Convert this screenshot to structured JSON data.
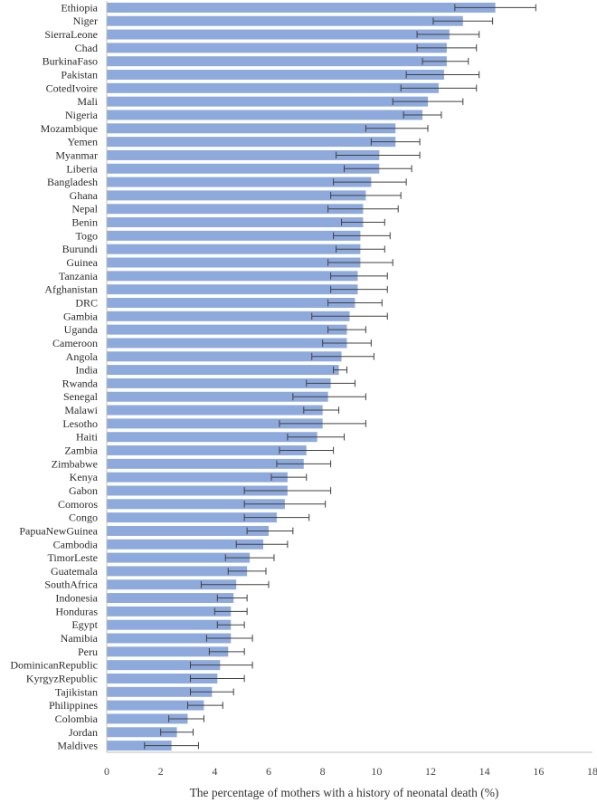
{
  "chart_data": {
    "type": "bar",
    "orientation": "horizontal",
    "xlabel": "The percentage of mothers with a history of neonatal death (%)",
    "xlim": [
      0,
      18
    ],
    "xticks": [
      0,
      2,
      4,
      6,
      8,
      10,
      12,
      14,
      16,
      18
    ],
    "grid": false,
    "colors": {
      "bar": "#8EA9DB",
      "error": "#404040",
      "axis": "#bfbfbf"
    },
    "categories": [
      "Ethiopia",
      "Niger",
      "SierraLeone",
      "Chad",
      "BurkinaFaso",
      "Pakistan",
      "CotedIvoire",
      "Mali",
      "Nigeria",
      "Mozambique",
      "Yemen",
      "Myanmar",
      "Liberia",
      "Bangladesh",
      "Ghana",
      "Nepal",
      "Benin",
      "Togo",
      "Burundi",
      "Guinea",
      "Tanzania",
      "Afghanistan",
      "DRC",
      "Gambia",
      "Uganda",
      "Cameroon",
      "Angola",
      "India",
      "Rwanda",
      "Senegal",
      "Malawi",
      "Lesotho",
      "Haiti",
      "Zambia",
      "Zimbabwe",
      "Kenya",
      "Gabon",
      "Comoros",
      "Congo",
      "PapuaNewGuinea",
      "Cambodia",
      "TimorLeste",
      "Guatemala",
      "SouthAfrica",
      "Indonesia",
      "Honduras",
      "Egypt",
      "Namibia",
      "Peru",
      "DominicanRepublic",
      "KyrgyzRepublic",
      "Tajikistan",
      "Philippines",
      "Colombia",
      "Jordan",
      "Maldives"
    ],
    "values": [
      14.4,
      13.2,
      12.7,
      12.6,
      12.6,
      12.5,
      12.3,
      11.9,
      11.7,
      10.7,
      10.7,
      10.1,
      10.1,
      9.8,
      9.6,
      9.5,
      9.5,
      9.4,
      9.4,
      9.4,
      9.3,
      9.3,
      9.2,
      9.0,
      8.9,
      8.9,
      8.7,
      8.6,
      8.3,
      8.2,
      8.0,
      8.0,
      7.8,
      7.4,
      7.3,
      6.7,
      6.7,
      6.6,
      6.3,
      6.0,
      5.8,
      5.3,
      5.2,
      4.8,
      4.7,
      4.6,
      4.6,
      4.6,
      4.5,
      4.2,
      4.1,
      3.9,
      3.6,
      3.0,
      2.6,
      2.4
    ],
    "error_low": [
      12.9,
      12.1,
      11.5,
      11.5,
      11.7,
      11.1,
      10.9,
      10.6,
      11.0,
      9.6,
      9.8,
      8.5,
      8.8,
      8.4,
      8.3,
      8.2,
      8.7,
      8.4,
      8.5,
      8.2,
      8.3,
      8.3,
      8.2,
      7.6,
      8.2,
      8.0,
      7.6,
      8.4,
      7.4,
      6.9,
      7.3,
      6.4,
      6.7,
      6.4,
      6.3,
      6.1,
      5.1,
      5.1,
      5.1,
      5.2,
      4.8,
      4.4,
      4.5,
      3.5,
      4.1,
      4.0,
      4.1,
      3.7,
      3.8,
      3.1,
      3.1,
      3.1,
      3.0,
      2.3,
      2.0,
      1.4
    ],
    "error_high": [
      15.9,
      14.3,
      13.8,
      13.7,
      13.4,
      13.8,
      13.7,
      13.2,
      12.4,
      11.9,
      11.6,
      11.6,
      11.3,
      11.1,
      10.9,
      10.8,
      10.3,
      10.5,
      10.3,
      10.6,
      10.4,
      10.4,
      10.2,
      10.4,
      9.6,
      9.8,
      9.9,
      8.9,
      9.2,
      9.6,
      8.6,
      9.6,
      8.8,
      8.4,
      8.3,
      7.4,
      8.3,
      8.1,
      7.5,
      6.9,
      6.7,
      6.2,
      5.9,
      6.0,
      5.2,
      5.2,
      5.1,
      5.4,
      5.1,
      5.4,
      5.1,
      4.7,
      4.3,
      3.6,
      3.2,
      3.4
    ]
  }
}
